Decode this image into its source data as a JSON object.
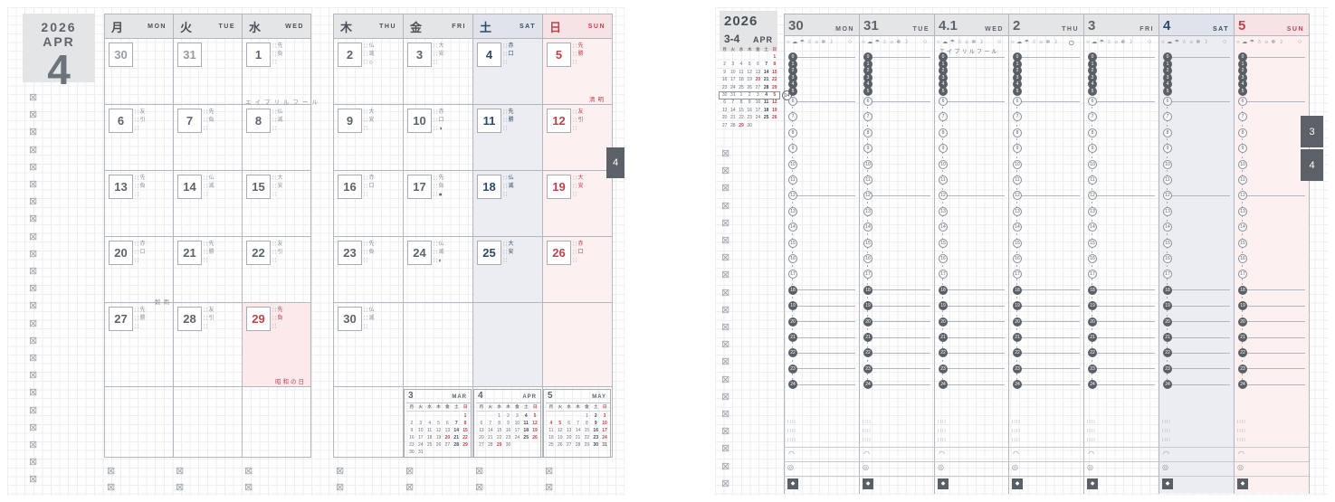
{
  "colors": {
    "ink": "#4a5058",
    "ink2": "#5d646c",
    "blue": "#2f4a68",
    "red": "#c2424c",
    "line": "#b3b7bd",
    "header_bg": "#e4e5e7",
    "sat_header_bg": "#e0e4ea",
    "sun_header_bg": "#f6e3e5",
    "sat_tint": "#ebedf3",
    "sun_tint": "#fdf0f1",
    "holiday_tint": "#fbe9eb",
    "tab_bg": "#5c6167"
  },
  "dow_labels": [
    "月",
    "火",
    "水",
    "木",
    "金",
    "土",
    "日"
  ],
  "left_page": {
    "title_year": "2026",
    "title_month": "APR",
    "title_num": "4",
    "tab": "4",
    "weekdays": [
      {
        "kanji": "月",
        "en": "MON",
        "type": "wd"
      },
      {
        "kanji": "火",
        "en": "TUE",
        "type": "wd"
      },
      {
        "kanji": "水",
        "en": "WED",
        "type": "wd"
      },
      {
        "kanji": "木",
        "en": "THU",
        "type": "wd"
      },
      {
        "kanji": "金",
        "en": "FRI",
        "type": "wd"
      },
      {
        "kanji": "土",
        "en": "SAT",
        "type": "sat"
      },
      {
        "kanji": "日",
        "en": "SUN",
        "type": "sun"
      }
    ],
    "weeks": [
      [
        {
          "d": "30",
          "prev": true
        },
        {
          "d": "31",
          "prev": true
        },
        {
          "d": "1",
          "rokuyo": "先負"
        },
        {
          "d": "2",
          "rokuyo": "仏滅",
          "moon": "○"
        },
        {
          "d": "3",
          "rokuyo": "大安"
        },
        {
          "d": "4",
          "rokuyo": "赤口"
        },
        {
          "d": "5",
          "rokuyo": "先勝"
        }
      ],
      [
        {
          "d": "6",
          "rokuyo": "友引"
        },
        {
          "d": "7",
          "rokuyo": "先負"
        },
        {
          "d": "8",
          "rokuyo": "仏滅"
        },
        {
          "d": "9",
          "rokuyo": "大安"
        },
        {
          "d": "10",
          "rokuyo": "赤口",
          "moon": "◑"
        },
        {
          "d": "11",
          "rokuyo": "先勝"
        },
        {
          "d": "12",
          "rokuyo": "友引"
        }
      ],
      [
        {
          "d": "13",
          "rokuyo": "先負"
        },
        {
          "d": "14",
          "rokuyo": "仏滅"
        },
        {
          "d": "15",
          "rokuyo": "大安"
        },
        {
          "d": "16",
          "rokuyo": "赤口"
        },
        {
          "d": "17",
          "rokuyo": "先負",
          "moon": "●"
        },
        {
          "d": "18",
          "rokuyo": "仏滅"
        },
        {
          "d": "19",
          "rokuyo": "大安"
        }
      ],
      [
        {
          "d": "20",
          "rokuyo": "赤口"
        },
        {
          "d": "21",
          "rokuyo": "先勝"
        },
        {
          "d": "22",
          "rokuyo": "友引"
        },
        {
          "d": "23",
          "rokuyo": "先負"
        },
        {
          "d": "24",
          "rokuyo": "仏滅",
          "moon": "◐"
        },
        {
          "d": "25",
          "rokuyo": "大安"
        },
        {
          "d": "26",
          "rokuyo": "赤口"
        }
      ],
      [
        {
          "d": "27",
          "rokuyo": "先勝"
        },
        {
          "d": "28",
          "rokuyo": "友引"
        },
        {
          "d": "29",
          "rokuyo": "先負",
          "holiday": true
        },
        {
          "d": "30",
          "rokuyo": "仏滅"
        },
        null,
        null,
        null
      ]
    ],
    "notes": {
      "april_fool": "エイプリルフール",
      "seimei": "清明",
      "kokuu": "穀雨",
      "showa_day": "昭和の日"
    },
    "mini_calendars": [
      {
        "num": "3",
        "en": "MAR",
        "weeks": [
          [
            "",
            "",
            "",
            "",
            "",
            "",
            "1!"
          ],
          [
            "2",
            "3",
            "4",
            "5",
            "6",
            "7*",
            "8!"
          ],
          [
            "9",
            "10",
            "11",
            "12",
            "13",
            "14*",
            "15!"
          ],
          [
            "16",
            "17",
            "18",
            "19",
            "20!",
            "21*",
            "22!"
          ],
          [
            "23",
            "24",
            "25",
            "26",
            "27",
            "28*",
            "29!"
          ],
          [
            "30",
            "31",
            "",
            "",
            "",
            "",
            ""
          ]
        ]
      },
      {
        "num": "4",
        "en": "APR",
        "weeks": [
          [
            "",
            "",
            "1",
            "2",
            "3",
            "4*",
            "5!"
          ],
          [
            "6",
            "7",
            "8",
            "9",
            "10",
            "11*",
            "12!"
          ],
          [
            "13",
            "14",
            "15",
            "16",
            "17",
            "18*",
            "19!"
          ],
          [
            "20",
            "21",
            "22",
            "23",
            "24",
            "25*",
            "26!"
          ],
          [
            "27",
            "28",
            "29!",
            "30",
            "",
            "",
            ""
          ]
        ]
      },
      {
        "num": "5",
        "en": "MAY",
        "weeks": [
          [
            "",
            "",
            "",
            "",
            "1",
            "2*",
            "3!"
          ],
          [
            "4!",
            "5!",
            "6",
            "7",
            "8",
            "9*",
            "10!"
          ],
          [
            "11",
            "12",
            "13",
            "14",
            "15",
            "16*",
            "17!"
          ],
          [
            "18",
            "19",
            "20",
            "21",
            "22",
            "23*",
            "24!"
          ],
          [
            "25",
            "26",
            "27",
            "28",
            "29",
            "30*",
            "31!"
          ]
        ]
      }
    ]
  },
  "right_page": {
    "title_year": "2026",
    "title_range": "3-4",
    "title_month": "APR",
    "tabs": [
      "3",
      "4"
    ],
    "april_fool": "エイプリルフール",
    "mini_calendar": {
      "week_number": "14",
      "highlight_week": 5,
      "weeks": [
        [
          "",
          "",
          "",
          "",
          "",
          "",
          "1!"
        ],
        [
          "2",
          "3",
          "4",
          "5",
          "6",
          "7*",
          "8!"
        ],
        [
          "9",
          "10",
          "11",
          "12",
          "13",
          "14*",
          "15!"
        ],
        [
          "16",
          "17",
          "18",
          "19",
          "20!",
          "21*",
          "22!"
        ],
        [
          "23",
          "24",
          "25",
          "26",
          "27",
          "28*",
          "29!"
        ],
        [
          "30",
          "31",
          "1",
          "2",
          "3",
          "4*",
          "5!"
        ],
        [
          "6",
          "7",
          "8",
          "9",
          "10",
          "11*",
          "12!"
        ],
        [
          "13",
          "14",
          "15",
          "16",
          "17",
          "18*",
          "19!"
        ],
        [
          "20",
          "21",
          "22",
          "23",
          "24",
          "25*",
          "26!"
        ],
        [
          "27",
          "28",
          "29!",
          "30",
          "",
          "",
          ""
        ]
      ]
    },
    "days": [
      {
        "num": "30",
        "en": "MON",
        "type": "wd"
      },
      {
        "num": "31",
        "en": "TUE",
        "type": "wd"
      },
      {
        "num": "4.1",
        "en": "WED",
        "type": "wd",
        "note": true
      },
      {
        "num": "2",
        "en": "THU",
        "type": "wd",
        "moon_big": true
      },
      {
        "num": "3",
        "en": "FRI",
        "type": "wd"
      },
      {
        "num": "4",
        "en": "SAT",
        "type": "sat"
      },
      {
        "num": "5",
        "en": "SUN",
        "type": "sun"
      }
    ],
    "weather_icons": [
      "○",
      "☁",
      "☂",
      "☃",
      "☼",
      "❄",
      "☽"
    ],
    "moon_icon": "○",
    "hours": [
      0,
      1,
      2,
      3,
      4,
      5,
      6,
      7,
      8,
      9,
      10,
      11,
      12,
      13,
      14,
      15,
      16,
      17,
      18,
      19,
      20,
      21,
      22,
      23,
      24
    ],
    "column_footer": {
      "tiny_rows": [
        "∷∷",
        "∷∷",
        "∷∷"
      ],
      "arc_icon": "◠",
      "ring_icon": "◎",
      "stamp_icon": "◆"
    }
  }
}
